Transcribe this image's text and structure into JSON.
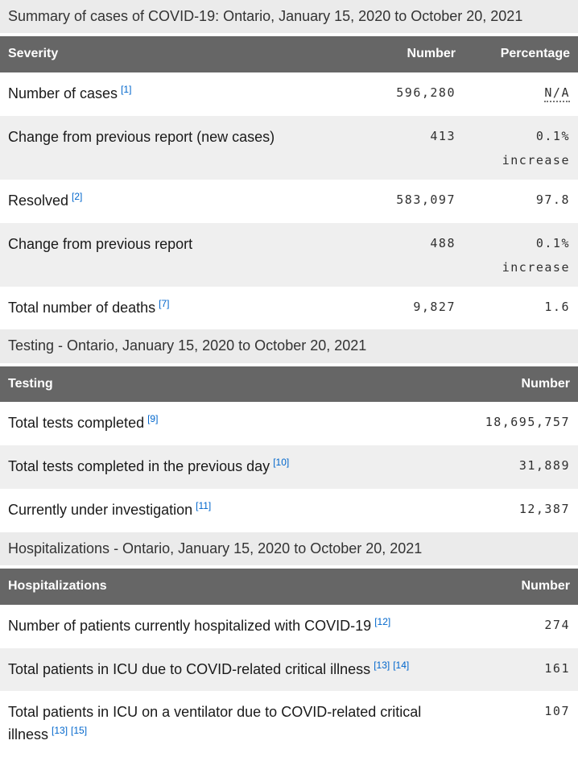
{
  "colors": {
    "header_bg": "#666666",
    "header_text": "#ffffff",
    "caption_bg": "#ebebeb",
    "stripe_bg": "#efefef",
    "footnote_link_blue": "#0066cc",
    "body_text": "#1a1a1a",
    "number_text": "#303030"
  },
  "tables": [
    {
      "caption": "Summary of cases of COVID-19: Ontario, January 15, 2020 to October 20, 2021",
      "columns": [
        "Severity",
        "Number",
        "Percentage"
      ],
      "rows": [
        {
          "label": "Number of cases",
          "footnotes": [
            "[1]"
          ],
          "number": "596,280",
          "percentage": "N/A",
          "na": true
        },
        {
          "label": "Change from previous report (new cases)",
          "footnotes": [],
          "number": "413",
          "percentage": "0.1%",
          "percentage_note": "increase"
        },
        {
          "label": "Resolved",
          "footnotes": [
            "[2]"
          ],
          "number": "583,097",
          "percentage": "97.8"
        },
        {
          "label": "Change from previous report",
          "footnotes": [],
          "number": "488",
          "percentage": "0.1%",
          "percentage_note": "increase"
        },
        {
          "label": "Total number of deaths",
          "footnotes": [
            "[7]"
          ],
          "number": "9,827",
          "percentage": "1.6"
        }
      ]
    },
    {
      "caption": "Testing - Ontario, January 15, 2020 to October 20, 2021",
      "columns": [
        "Testing",
        "Number"
      ],
      "rows": [
        {
          "label": "Total tests completed",
          "footnotes": [
            "[9]"
          ],
          "number": "18,695,757"
        },
        {
          "label": "Total tests completed in the previous day",
          "footnotes": [
            "[10]"
          ],
          "number": "31,889"
        },
        {
          "label": "Currently under investigation",
          "footnotes": [
            "[11]"
          ],
          "number": "12,387"
        }
      ]
    },
    {
      "caption": "Hospitalizations - Ontario, January 15, 2020 to October 20, 2021",
      "columns": [
        "Hospitalizations",
        "Number"
      ],
      "rows": [
        {
          "label": "Number of patients currently hospitalized with COVID-19",
          "footnotes": [
            "[12]"
          ],
          "number": "274"
        },
        {
          "label": "Total patients in ICU due to COVID-related critical illness",
          "footnotes": [
            "[13]",
            "[14]"
          ],
          "number": "161"
        },
        {
          "label": "Total patients in ICU on a ventilator due to COVID-related critical illness",
          "footnotes": [
            "[13]",
            "[15]"
          ],
          "number": "107"
        }
      ]
    }
  ]
}
